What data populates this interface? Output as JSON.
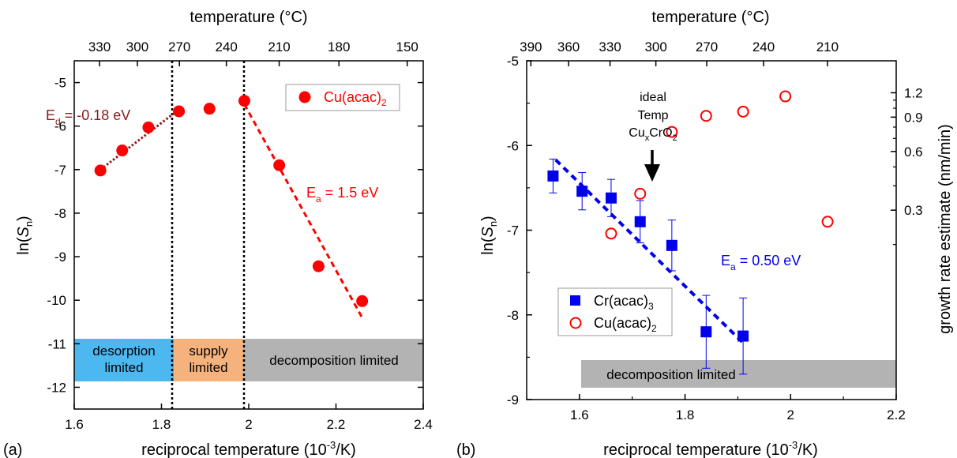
{
  "chart_data": [
    {
      "panel": "(a)",
      "type": "scatter",
      "xlabel": "reciprocal temperature (10⁻³/K)",
      "x2label": "temperature (°C)",
      "ylabel": "ln(Sₙ)",
      "xlim": [
        1.6,
        2.4
      ],
      "ylim": [
        -12.5,
        -4.5
      ],
      "x_ticks": [
        "1.6",
        "1.8",
        "2",
        "2.2",
        "2.4"
      ],
      "y_ticks": [
        "-5",
        "-6",
        "-7",
        "-8",
        "-9",
        "-10",
        "-11",
        "-12"
      ],
      "top_ticks": [
        "330",
        "300",
        "270",
        "240",
        "210",
        "180",
        "150"
      ],
      "series": [
        {
          "name": "Cu(acac)₂",
          "color": "#ff0000",
          "marker": "filled-circle",
          "x": [
            1.66,
            1.71,
            1.77,
            1.84,
            1.91,
            1.99,
            2.07,
            2.16,
            2.26
          ],
          "y": [
            -7.02,
            -6.56,
            -6.03,
            -5.66,
            -5.6,
            -5.42,
            -6.9,
            -9.22,
            -10.02
          ]
        }
      ],
      "fits": [
        {
          "label": "E_d = -0.18 eV",
          "color": "#8b1a1a",
          "style": "dotted",
          "x": [
            1.66,
            1.84
          ],
          "y": [
            -7.0,
            -5.62
          ]
        },
        {
          "label": "E_a = 1.5 eV",
          "color": "#ff0000",
          "style": "dashed",
          "x": [
            1.99,
            2.26
          ],
          "y": [
            -5.5,
            -10.4
          ]
        }
      ],
      "annotations": {
        "ed_prefix": "E",
        "ed_sub": "d",
        "ed_value": " = -0.18 eV",
        "ea_prefix": "E",
        "ea_sub": "a",
        "ea_value": " = 1.5 eV"
      },
      "vlines_x": [
        1.84,
        2.0
      ],
      "regions": [
        {
          "label": [
            "desorption",
            "limited"
          ],
          "color": "#4db8f0",
          "x": [
            1.6,
            1.84
          ],
          "y": [
            -12,
            -11
          ]
        },
        {
          "label": [
            "supply",
            "limited"
          ],
          "color": "#f5b27c",
          "x": [
            1.84,
            2.0
          ],
          "y": [
            -12,
            -11
          ]
        },
        {
          "label": [
            "decomposition limited"
          ],
          "color": "#b3b3b3",
          "x": [
            2.0,
            2.4
          ],
          "y": [
            -12,
            -11
          ]
        }
      ],
      "legend": {
        "position": "top-right",
        "entries": [
          "Cu(acac)₂"
        ]
      }
    },
    {
      "panel": "(b)",
      "type": "scatter",
      "xlabel": "reciprocal temperature (10⁻³/K)",
      "x2label": "temperature (°C)",
      "ylabel": "ln(Sₙ)",
      "y2label": "growth rate estimate (nm/min)",
      "xlim": [
        1.5,
        2.2
      ],
      "ylim": [
        -9,
        -5
      ],
      "x_ticks": [
        "1.6",
        "1.8",
        "2",
        "2.2"
      ],
      "y_ticks": [
        "-5",
        "-6",
        "-7",
        "-8",
        "-9"
      ],
      "top_ticks": [
        "390",
        "360",
        "330",
        "300",
        "270",
        "240",
        "210"
      ],
      "right_ticks": [
        "1.2",
        "0.9",
        "0.6",
        "0.3"
      ],
      "series": [
        {
          "name": "Cr(acac)₃",
          "color": "#0000ee",
          "marker": "filled-square",
          "x": [
            1.55,
            1.605,
            1.66,
            1.715,
            1.775,
            1.84,
            1.91
          ],
          "y": [
            -6.36,
            -6.54,
            -6.62,
            -6.9,
            -7.18,
            -8.2,
            -8.25
          ],
          "yerr": [
            0.2,
            0.22,
            0.22,
            0.25,
            0.3,
            0.43,
            0.45
          ]
        },
        {
          "name": "Cu(acac)₂",
          "color": "#ff0000",
          "marker": "open-circle",
          "x": [
            1.66,
            1.715,
            1.775,
            1.84,
            1.91,
            1.99,
            2.07
          ],
          "y": [
            -7.04,
            -6.57,
            -5.84,
            -5.65,
            -5.6,
            -5.42,
            -6.9
          ]
        }
      ],
      "fits": [
        {
          "label": "E_a = 0.50 eV",
          "color": "#0000ee",
          "style": "dashed",
          "x": [
            1.555,
            1.91
          ],
          "y": [
            -6.17,
            -8.33
          ]
        }
      ],
      "annotations": {
        "ea_prefix": "E",
        "ea_sub": "a",
        "ea_value": " = 0.50 eV",
        "ideal_lines": [
          "ideal",
          "Temp"
        ],
        "ideal_formula": [
          "Cu",
          "x",
          "CrO",
          "2"
        ],
        "arrow_x": 1.715
      },
      "regions": [
        {
          "label": [
            "decomposition limited"
          ],
          "color": "#b3b3b3",
          "x": [
            1.57,
            2.2
          ],
          "y": [
            -8.82,
            -8.53
          ]
        }
      ],
      "legend": {
        "position": "bottom-left",
        "entries": [
          "Cr(acac)₃",
          "Cu(acac)₂"
        ]
      }
    }
  ]
}
